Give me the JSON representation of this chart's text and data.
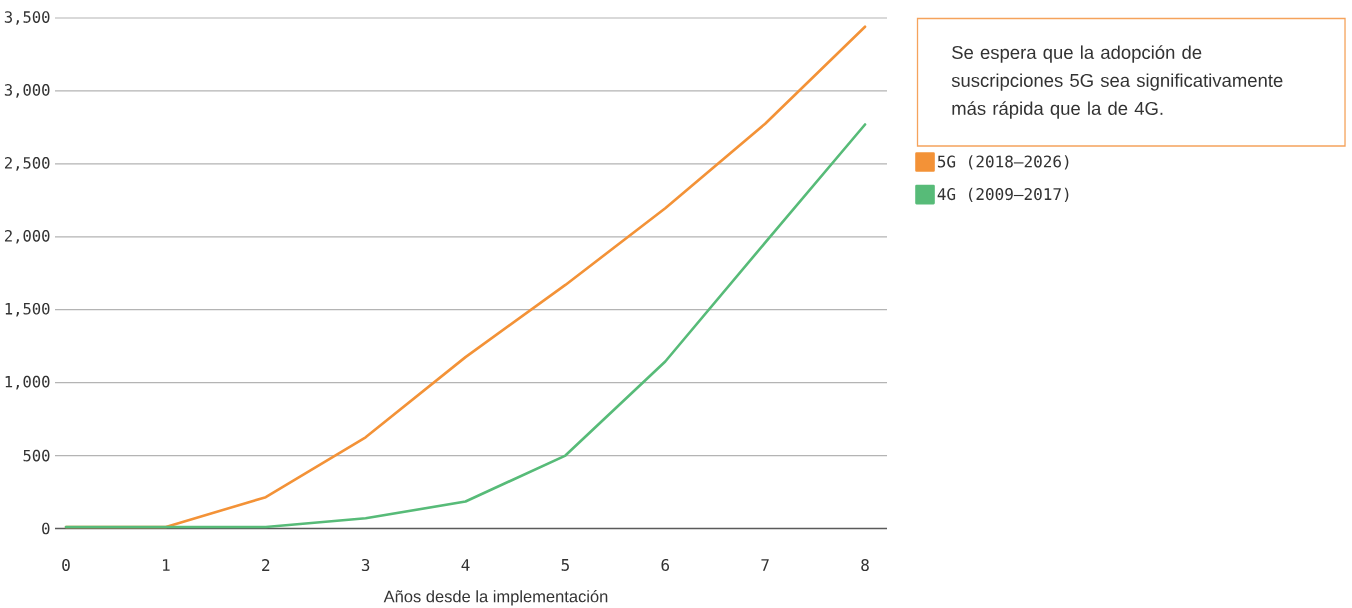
{
  "chart_data": {
    "type": "line",
    "categories": [
      "0",
      "1",
      "2",
      "3",
      "4",
      "5",
      "6",
      "7",
      "8"
    ],
    "series": [
      {
        "name": "5G (2018–2026)",
        "color": "#f39237",
        "values": [
          10,
          10,
          215,
          625,
          1175,
          1670,
          2195,
          2775,
          3440
        ]
      },
      {
        "name": "4G (2009–2017)",
        "color": "#57bb78",
        "values": [
          10,
          10,
          10,
          70,
          185,
          500,
          1145,
          1960,
          2770
        ]
      }
    ],
    "xlabel": "Años desde la implementación",
    "ylim": [
      0,
      3500
    ],
    "yticks": [
      0,
      500,
      {
        "value": 1000,
        "label": "1,000"
      },
      {
        "value": 1500,
        "label": "1,500"
      },
      {
        "value": 2000,
        "label": "2,000"
      },
      {
        "value": 2500,
        "label": "2,500"
      },
      {
        "value": 3000,
        "label": "3,000"
      },
      {
        "value": 3500,
        "label": "3,500"
      }
    ],
    "grid": "y",
    "legend": "right",
    "annotations": [
      "Se espera que la adopción de suscripciones 5G sea significativamente más rápida que la de 4G."
    ]
  }
}
